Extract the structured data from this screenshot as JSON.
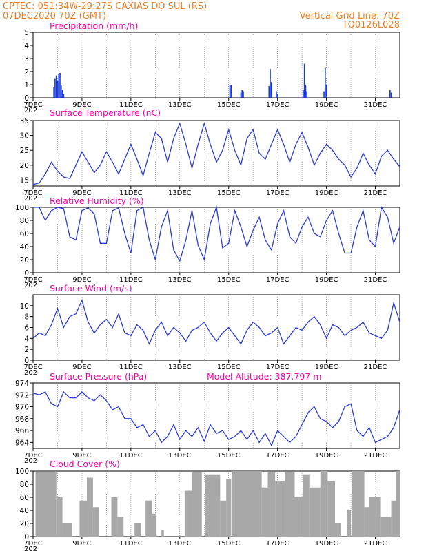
{
  "header": {
    "left_line1": "CPTEC:   051:34W-29:27S   CAXIAS DO SUL (RS)",
    "left_line2": "07DEC2020 70Z (GMT)",
    "right_line1": "Vertical Grid Line: 70Z",
    "right_line2": "TQ0126L028"
  },
  "colors": {
    "header": "#f07d1e",
    "title": "#ff00aa",
    "line": "#2b3bdc",
    "cloud": "#a8a8a8",
    "precip": "#1a3ad8"
  },
  "x_axis": {
    "labels": [
      "7DEC",
      "9DEC",
      "11DEC",
      "13DEC",
      "15DEC",
      "17DEC",
      "19DEC",
      "21DEC"
    ],
    "year_marker": "202"
  },
  "chart_data": [
    {
      "type": "bar",
      "title": "Precipitation (mm/h)",
      "ylim": [
        0,
        5
      ],
      "yticks": [
        "0",
        "1",
        "2",
        "3",
        "4",
        "5"
      ],
      "x_unit": "days since 07DEC 00Z",
      "bars": [
        {
          "x": 0.85,
          "v": 0.8
        },
        {
          "x": 0.9,
          "v": 1.5
        },
        {
          "x": 0.95,
          "v": 1.7
        },
        {
          "x": 1.0,
          "v": 1.3
        },
        {
          "x": 1.05,
          "v": 1.8
        },
        {
          "x": 1.1,
          "v": 1.9
        },
        {
          "x": 1.15,
          "v": 1.0
        },
        {
          "x": 1.2,
          "v": 0.6
        },
        {
          "x": 1.25,
          "v": 0.3
        },
        {
          "x": 8.05,
          "v": 1.0
        },
        {
          "x": 8.1,
          "v": 1.0
        },
        {
          "x": 8.5,
          "v": 0.4
        },
        {
          "x": 8.55,
          "v": 0.6
        },
        {
          "x": 8.6,
          "v": 0.5
        },
        {
          "x": 9.65,
          "v": 0.9
        },
        {
          "x": 9.7,
          "v": 2.2
        },
        {
          "x": 9.75,
          "v": 1.2
        },
        {
          "x": 9.95,
          "v": 0.5
        },
        {
          "x": 10.0,
          "v": 0.3
        },
        {
          "x": 11.05,
          "v": 0.6
        },
        {
          "x": 11.1,
          "v": 2.6
        },
        {
          "x": 11.15,
          "v": 1.0
        },
        {
          "x": 11.2,
          "v": 0.5
        },
        {
          "x": 11.9,
          "v": 0.5
        },
        {
          "x": 11.95,
          "v": 2.3
        },
        {
          "x": 12.0,
          "v": 1.0
        },
        {
          "x": 14.6,
          "v": 0.6
        },
        {
          "x": 14.65,
          "v": 0.4
        }
      ]
    },
    {
      "type": "line",
      "title": "Surface Temperature (nC)",
      "ylim": [
        13,
        35
      ],
      "yticks": [
        "15",
        "20",
        "25",
        "30",
        "35"
      ],
      "x": [
        0,
        0.25,
        0.5,
        0.75,
        1,
        1.25,
        1.5,
        1.75,
        2,
        2.25,
        2.5,
        2.75,
        3,
        3.25,
        3.5,
        3.75,
        4,
        4.25,
        4.5,
        4.75,
        5,
        5.25,
        5.5,
        5.75,
        6,
        6.25,
        6.5,
        6.75,
        7,
        7.25,
        7.5,
        7.75,
        8,
        8.25,
        8.5,
        8.75,
        9,
        9.25,
        9.5,
        9.75,
        10,
        10.25,
        10.5,
        10.75,
        11,
        11.25,
        11.5,
        11.75,
        12,
        12.25,
        12.5,
        12.75,
        13,
        13.25,
        13.5,
        13.75,
        14,
        14.25,
        14.5,
        14.75,
        15
      ],
      "values": [
        13.5,
        14,
        17,
        21,
        18,
        16,
        15.5,
        20,
        24.5,
        21,
        17.5,
        20,
        24.5,
        21,
        17,
        22,
        27,
        22,
        16.5,
        24,
        31,
        29,
        21,
        29,
        34,
        27,
        19,
        27,
        34,
        27,
        21,
        25,
        32,
        25,
        20,
        29,
        32,
        24,
        22,
        27,
        32,
        27,
        21,
        27,
        31,
        26,
        20,
        24,
        27,
        25,
        22,
        20,
        16,
        19,
        24,
        20,
        17,
        23,
        25,
        22,
        19.5
      ]
    },
    {
      "type": "line",
      "title": "Relative Humidity (%)",
      "ylim": [
        0,
        100
      ],
      "yticks": [
        "0",
        "20",
        "40",
        "60",
        "80",
        "100"
      ],
      "x": [
        0,
        0.25,
        0.5,
        0.75,
        1,
        1.25,
        1.5,
        1.75,
        2,
        2.25,
        2.5,
        2.75,
        3,
        3.25,
        3.5,
        3.75,
        4,
        4.25,
        4.5,
        4.75,
        5,
        5.25,
        5.5,
        5.75,
        6,
        6.25,
        6.5,
        6.75,
        7,
        7.25,
        7.5,
        7.75,
        8,
        8.25,
        8.5,
        8.75,
        9,
        9.25,
        9.5,
        9.75,
        10,
        10.25,
        10.5,
        10.75,
        11,
        11.25,
        11.5,
        11.75,
        12,
        12.25,
        12.5,
        12.75,
        13,
        13.25,
        13.5,
        13.75,
        14,
        14.25,
        14.5,
        14.75,
        15
      ],
      "values": [
        100,
        100,
        80,
        95,
        100,
        98,
        55,
        50,
        95,
        99,
        90,
        45,
        45,
        95,
        99,
        60,
        30,
        95,
        100,
        50,
        20,
        70,
        95,
        35,
        18,
        50,
        95,
        42,
        20,
        75,
        100,
        38,
        45,
        95,
        70,
        40,
        65,
        85,
        50,
        35,
        75,
        95,
        55,
        45,
        70,
        85,
        60,
        55,
        80,
        95,
        60,
        30,
        30,
        70,
        95,
        50,
        40,
        100,
        85,
        45,
        70
      ]
    },
    {
      "type": "line",
      "title": "Surface Wind (m/s)",
      "ylim": [
        0,
        12
      ],
      "yticks": [
        "0",
        "2",
        "4",
        "6",
        "8",
        "10"
      ],
      "x": [
        0,
        0.25,
        0.5,
        0.75,
        1,
        1.25,
        1.5,
        1.75,
        2,
        2.25,
        2.5,
        2.75,
        3,
        3.25,
        3.5,
        3.75,
        4,
        4.25,
        4.5,
        4.75,
        5,
        5.25,
        5.5,
        5.75,
        6,
        6.25,
        6.5,
        6.75,
        7,
        7.25,
        7.5,
        7.75,
        8,
        8.25,
        8.5,
        8.75,
        9,
        9.25,
        9.5,
        9.75,
        10,
        10.25,
        10.5,
        10.75,
        11,
        11.25,
        11.5,
        11.75,
        12,
        12.25,
        12.5,
        12.75,
        13,
        13.25,
        13.5,
        13.75,
        14,
        14.25,
        14.5,
        14.75,
        15
      ],
      "values": [
        4,
        5,
        4.5,
        6.5,
        9.5,
        6,
        8,
        8.5,
        11,
        7,
        5,
        6.5,
        7.5,
        6,
        8.5,
        5,
        4.5,
        6.5,
        5.5,
        3,
        5.5,
        7,
        4.5,
        6,
        5,
        3.5,
        5.5,
        6,
        7,
        5,
        3.5,
        5,
        6,
        4.5,
        3,
        5.5,
        7,
        6,
        4.5,
        5,
        6,
        3,
        4.5,
        6,
        5.5,
        7,
        8,
        6.5,
        4,
        6.5,
        6,
        4.5,
        5.5,
        6,
        7,
        5,
        4.5,
        4,
        5.5,
        10.5,
        7
      ]
    },
    {
      "type": "line",
      "title": "Surface Pressure (hPa)",
      "annotation": "Model Altitude: 387.797 m",
      "ylim": [
        963,
        974
      ],
      "yticks": [
        "964",
        "966",
        "968",
        "970",
        "972",
        "974"
      ],
      "x": [
        0,
        0.25,
        0.5,
        0.75,
        1,
        1.25,
        1.5,
        1.75,
        2,
        2.25,
        2.5,
        2.75,
        3,
        3.25,
        3.5,
        3.75,
        4,
        4.25,
        4.5,
        4.75,
        5,
        5.25,
        5.5,
        5.75,
        6,
        6.25,
        6.5,
        6.75,
        7,
        7.25,
        7.5,
        7.75,
        8,
        8.25,
        8.5,
        8.75,
        9,
        9.25,
        9.5,
        9.75,
        10,
        10.25,
        10.5,
        10.75,
        11,
        11.25,
        11.5,
        11.75,
        12,
        12.25,
        12.5,
        12.75,
        13,
        13.25,
        13.5,
        13.75,
        14,
        14.25,
        14.5,
        14.75,
        15
      ],
      "values": [
        972.3,
        972,
        972.5,
        970.5,
        970,
        972.5,
        971.5,
        971.5,
        972.5,
        971.5,
        971,
        972,
        971,
        969.5,
        970,
        968,
        968,
        966.5,
        967,
        965,
        966,
        964,
        965,
        967,
        964.5,
        966,
        965,
        966.5,
        964.2,
        967,
        965.5,
        966,
        964.5,
        965,
        966,
        964.5,
        966,
        964,
        965.5,
        963.5,
        966,
        965,
        964,
        965,
        967,
        969,
        970,
        968,
        967.5,
        966.5,
        967.5,
        970,
        970.5,
        966,
        965,
        966.5,
        964,
        964.5,
        965,
        966.5,
        969.5
      ]
    },
    {
      "type": "area",
      "title": "Cloud Cover (%)",
      "ylim": [
        0,
        100
      ],
      "yticks": [
        "0",
        "20",
        "40",
        "60",
        "80",
        "100"
      ],
      "x_unit": "days since 07DEC 00Z",
      "segments": [
        {
          "from": 0.1,
          "to": 0.95,
          "v": 98
        },
        {
          "from": 0.95,
          "to": 1.2,
          "v": 60
        },
        {
          "from": 1.2,
          "to": 1.6,
          "v": 20
        },
        {
          "from": 1.9,
          "to": 2.2,
          "v": 55
        },
        {
          "from": 2.2,
          "to": 2.45,
          "v": 90
        },
        {
          "from": 2.45,
          "to": 2.7,
          "v": 45
        },
        {
          "from": 3.2,
          "to": 3.45,
          "v": 60
        },
        {
          "from": 3.45,
          "to": 3.7,
          "v": 30
        },
        {
          "from": 4.15,
          "to": 4.4,
          "v": 20
        },
        {
          "from": 4.6,
          "to": 4.85,
          "v": 55
        },
        {
          "from": 4.85,
          "to": 5.05,
          "v": 35
        },
        {
          "from": 5.25,
          "to": 5.35,
          "v": 10
        },
        {
          "from": 6.2,
          "to": 6.5,
          "v": 70
        },
        {
          "from": 6.5,
          "to": 6.9,
          "v": 98
        },
        {
          "from": 7.05,
          "to": 7.65,
          "v": 95
        },
        {
          "from": 7.65,
          "to": 7.9,
          "v": 55
        },
        {
          "from": 7.9,
          "to": 8.1,
          "v": 88
        },
        {
          "from": 8.15,
          "to": 9.35,
          "v": 100
        },
        {
          "from": 9.35,
          "to": 9.6,
          "v": 75
        },
        {
          "from": 9.6,
          "to": 9.9,
          "v": 98
        },
        {
          "from": 9.9,
          "to": 10.3,
          "v": 85
        },
        {
          "from": 10.3,
          "to": 10.7,
          "v": 98
        },
        {
          "from": 10.7,
          "to": 11.05,
          "v": 60
        },
        {
          "from": 11.05,
          "to": 11.3,
          "v": 95
        },
        {
          "from": 11.3,
          "to": 11.75,
          "v": 75
        },
        {
          "from": 11.75,
          "to": 12.05,
          "v": 100
        },
        {
          "from": 12.05,
          "to": 12.35,
          "v": 85
        },
        {
          "from": 12.35,
          "to": 12.6,
          "v": 20
        },
        {
          "from": 12.85,
          "to": 13.0,
          "v": 40
        },
        {
          "from": 13.05,
          "to": 13.55,
          "v": 100
        },
        {
          "from": 13.55,
          "to": 13.75,
          "v": 45
        },
        {
          "from": 13.75,
          "to": 14.2,
          "v": 60
        },
        {
          "from": 14.2,
          "to": 14.65,
          "v": 30
        },
        {
          "from": 14.65,
          "to": 14.85,
          "v": 55
        },
        {
          "from": 14.85,
          "to": 15.0,
          "v": 100
        }
      ]
    }
  ]
}
